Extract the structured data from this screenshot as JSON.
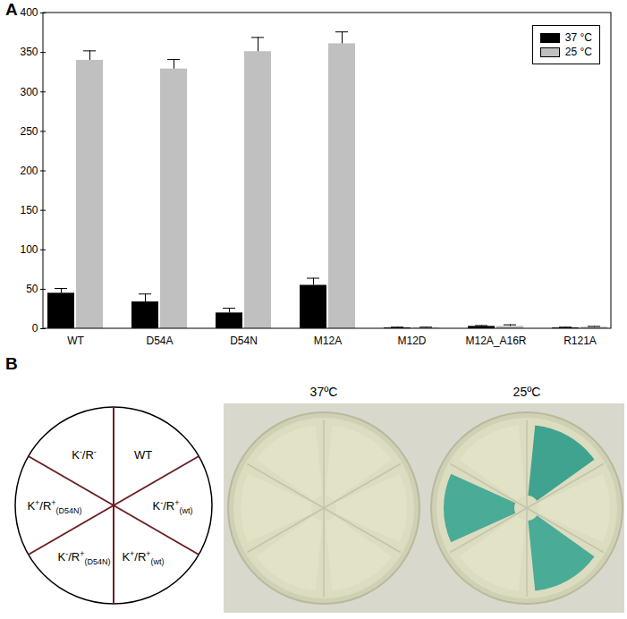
{
  "chart_data": {
    "type": "bar",
    "panel_label": "A",
    "categories": [
      "WT",
      "D54A",
      "D54N",
      "M12A",
      "M12D",
      "M12A_A16R",
      "R121A"
    ],
    "series": [
      {
        "name": "37 °C",
        "color": "#000000",
        "values": [
          45,
          34,
          20,
          55,
          1,
          3,
          1
        ],
        "errors": [
          6,
          10,
          6,
          9,
          1,
          1,
          1
        ]
      },
      {
        "name": "25 °C",
        "color": "#c0c0c0",
        "values": [
          340,
          329,
          351,
          361,
          1,
          3,
          2
        ],
        "errors": [
          12,
          12,
          18,
          15,
          1,
          2,
          1
        ]
      }
    ],
    "ylim": [
      0,
      400
    ],
    "yticks": [
      0,
      50,
      100,
      150,
      200,
      250,
      300,
      350,
      400
    ],
    "grid": false,
    "legend": "upper right"
  },
  "panel_b": {
    "panel_label": "B",
    "sectors": [
      [
        {
          "t": "WT"
        }
      ],
      [
        {
          "t": "K"
        },
        {
          "t": "-",
          "sup": true
        },
        {
          "t": "/R"
        },
        {
          "t": "+",
          "sup": true
        },
        {
          "t": "(wt)",
          "sub": true
        }
      ],
      [
        {
          "t": "K"
        },
        {
          "t": "+",
          "sup": true
        },
        {
          "t": "/R"
        },
        {
          "t": "+",
          "sup": true
        },
        {
          "t": "(wt)",
          "sub": true
        }
      ],
      [
        {
          "t": "K"
        },
        {
          "t": "-",
          "sup": true
        },
        {
          "t": "/R"
        },
        {
          "t": "+",
          "sup": true
        },
        {
          "t": "(D54N)",
          "sub": true
        }
      ],
      [
        {
          "t": "K"
        },
        {
          "t": "+",
          "sup": true
        },
        {
          "t": "/R"
        },
        {
          "t": "+",
          "sup": true
        },
        {
          "t": "(D54N)",
          "sub": true
        }
      ],
      [
        {
          "t": "K"
        },
        {
          "t": "-",
          "sup": true
        },
        {
          "t": "/R"
        },
        {
          "t": "-",
          "sup": true
        }
      ]
    ],
    "plates": [
      {
        "title": "37ºC",
        "sector_colors": [
          "#e2e2c6",
          "#e2e2c6",
          "#e2e2c6",
          "#e2e2c6",
          "#e2e2c6",
          "#e2e2c6"
        ]
      },
      {
        "title": "25ºC",
        "sector_colors": [
          "#2e9c8a",
          "#e2e2c6",
          "#3aa592",
          "#e2e2c6",
          "#3aa592",
          "#e2e2c6"
        ]
      }
    ]
  }
}
